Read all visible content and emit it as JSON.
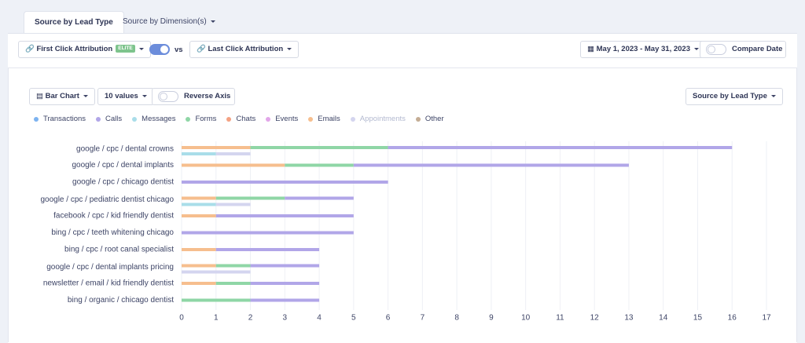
{
  "tabs": [
    "Source by Lead Type",
    "Source by Dimension(s)"
  ],
  "toolbar": {
    "first_click": "First Click Attribution",
    "badge": "ELITE",
    "vs": "vs",
    "last_click": "Last Click Attribution",
    "date_range": "May 1, 2023 - May 31, 2023",
    "compare": "Compare Date"
  },
  "chart_controls": {
    "chart_type": "Bar Chart",
    "values_count": "10 values",
    "reverse_axis": "Reverse Axis",
    "group_by": "Source by Lead Type"
  },
  "chart_data": {
    "type": "bar",
    "orientation": "horizontal",
    "stacked": true,
    "categories": [
      "google / cpc / dental crowns",
      "google / cpc / dental implants",
      "google / cpc / chicago dentist",
      "google / cpc / pediatric dentist chicago",
      "facebook / cpc / kid friendly dentist",
      "bing / cpc / teeth whitening chicago",
      "bing / cpc / root canal specialist",
      "google / cpc / dental implants pricing",
      "newsletter / email / kid friendly dentist",
      "bing / organic / chicago dentist"
    ],
    "series": [
      {
        "name": "Transactions",
        "color": "#7db3f0",
        "stack": 1,
        "values": [
          0,
          0,
          0,
          0,
          0,
          0,
          0,
          0,
          0,
          0
        ]
      },
      {
        "name": "Calls",
        "color": "#b1a6e8",
        "stack": 1,
        "values": [
          10,
          8,
          6,
          2,
          4,
          5,
          3,
          2,
          2,
          2
        ]
      },
      {
        "name": "Messages",
        "color": "#a9dde9",
        "stack": 2,
        "values": [
          1,
          0,
          0,
          1,
          0,
          0,
          0,
          0,
          0,
          0
        ]
      },
      {
        "name": "Forms",
        "color": "#8fd6a6",
        "stack": 1,
        "values": [
          4,
          2,
          0,
          2,
          0,
          0,
          0,
          1,
          1,
          2
        ]
      },
      {
        "name": "Chats",
        "color": "#f4a283",
        "stack": 1,
        "values": [
          0,
          0,
          0,
          0,
          0,
          0,
          0,
          0,
          0,
          0
        ]
      },
      {
        "name": "Events",
        "color": "#e2a6e9",
        "stack": 1,
        "values": [
          0,
          0,
          0,
          0,
          0,
          0,
          0,
          0,
          0,
          0
        ]
      },
      {
        "name": "Emails",
        "color": "#f6be8e",
        "stack": 1,
        "values": [
          2,
          3,
          0,
          1,
          1,
          0,
          1,
          1,
          1,
          0
        ]
      },
      {
        "name": "Appointments",
        "color": "#d4d5ef",
        "stack": 2,
        "values": [
          1,
          0,
          0,
          1,
          0,
          0,
          0,
          2,
          0,
          0
        ]
      },
      {
        "name": "Other",
        "color": "#c4ad95",
        "stack": 1,
        "values": [
          0,
          0,
          0,
          0,
          0,
          0,
          0,
          0,
          0,
          0
        ]
      }
    ],
    "xlim": [
      0,
      17
    ],
    "xticks": [
      0,
      1,
      2,
      3,
      4,
      5,
      6,
      7,
      8,
      9,
      10,
      11,
      12,
      13,
      14,
      15,
      16,
      17
    ],
    "grid": true
  }
}
